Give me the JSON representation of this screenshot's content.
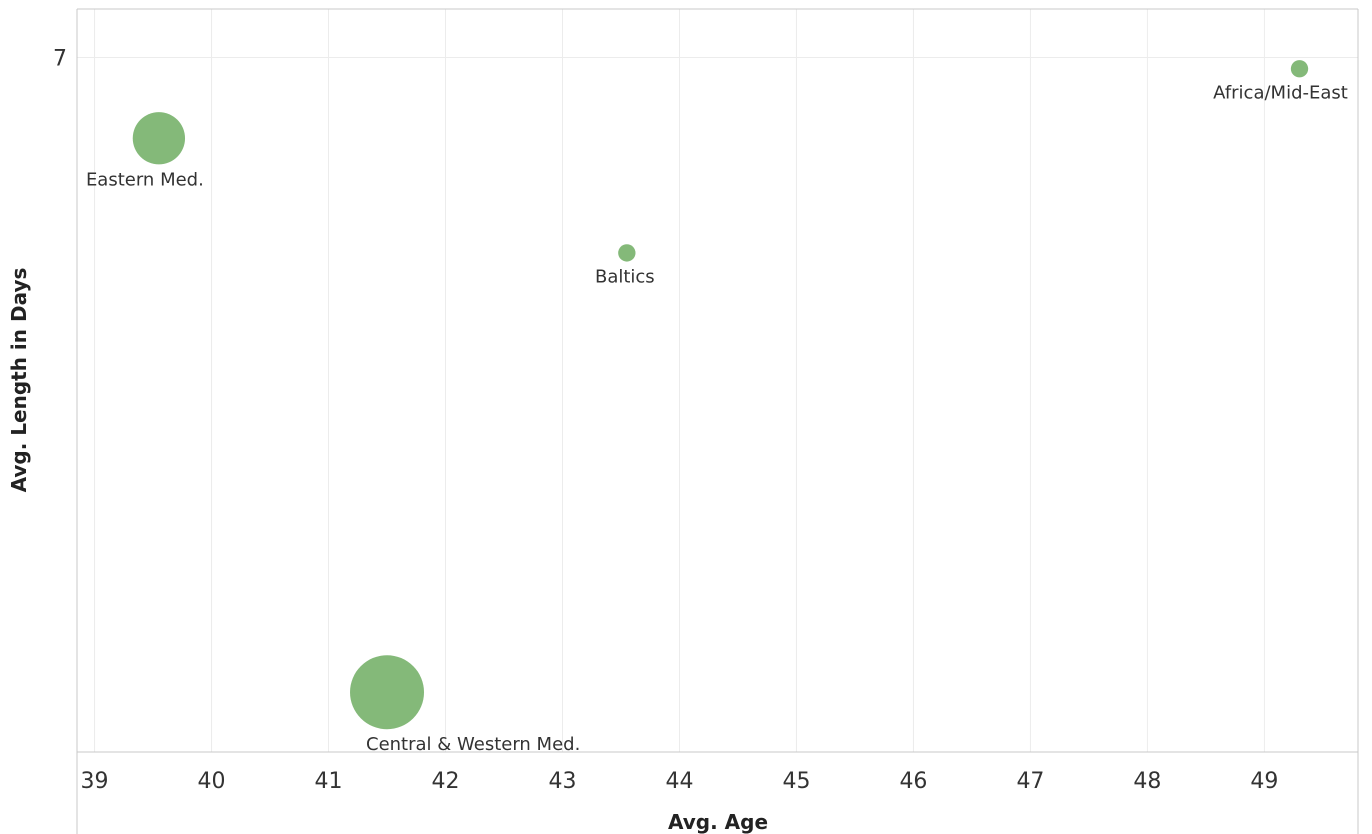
{
  "chart_data": {
    "type": "scatter",
    "title": "",
    "xlabel": "Avg. Age",
    "ylabel": "Avg. Length in Days",
    "xlim": [
      38.85,
      49.8
    ],
    "ylim": [
      2.7,
      7.3
    ],
    "x_ticks": [
      39,
      40,
      41,
      42,
      43,
      44,
      45,
      46,
      47,
      48,
      49
    ],
    "y_ticks": [
      7
    ],
    "grid": true,
    "point_color": "#7db572",
    "series": [
      {
        "points": [
          {
            "label": "Eastern Med.",
            "x": 39.55,
            "y": 6.5,
            "size": 0.45
          },
          {
            "label": "Baltics",
            "x": 43.55,
            "y": 5.79,
            "size": 0.02
          },
          {
            "label": "Africa/Mid-East",
            "x": 49.3,
            "y": 6.93,
            "size": 0.02
          },
          {
            "label": "Central & Western Med.",
            "x": 41.5,
            "y": 3.07,
            "size": 1.0
          }
        ]
      }
    ]
  }
}
